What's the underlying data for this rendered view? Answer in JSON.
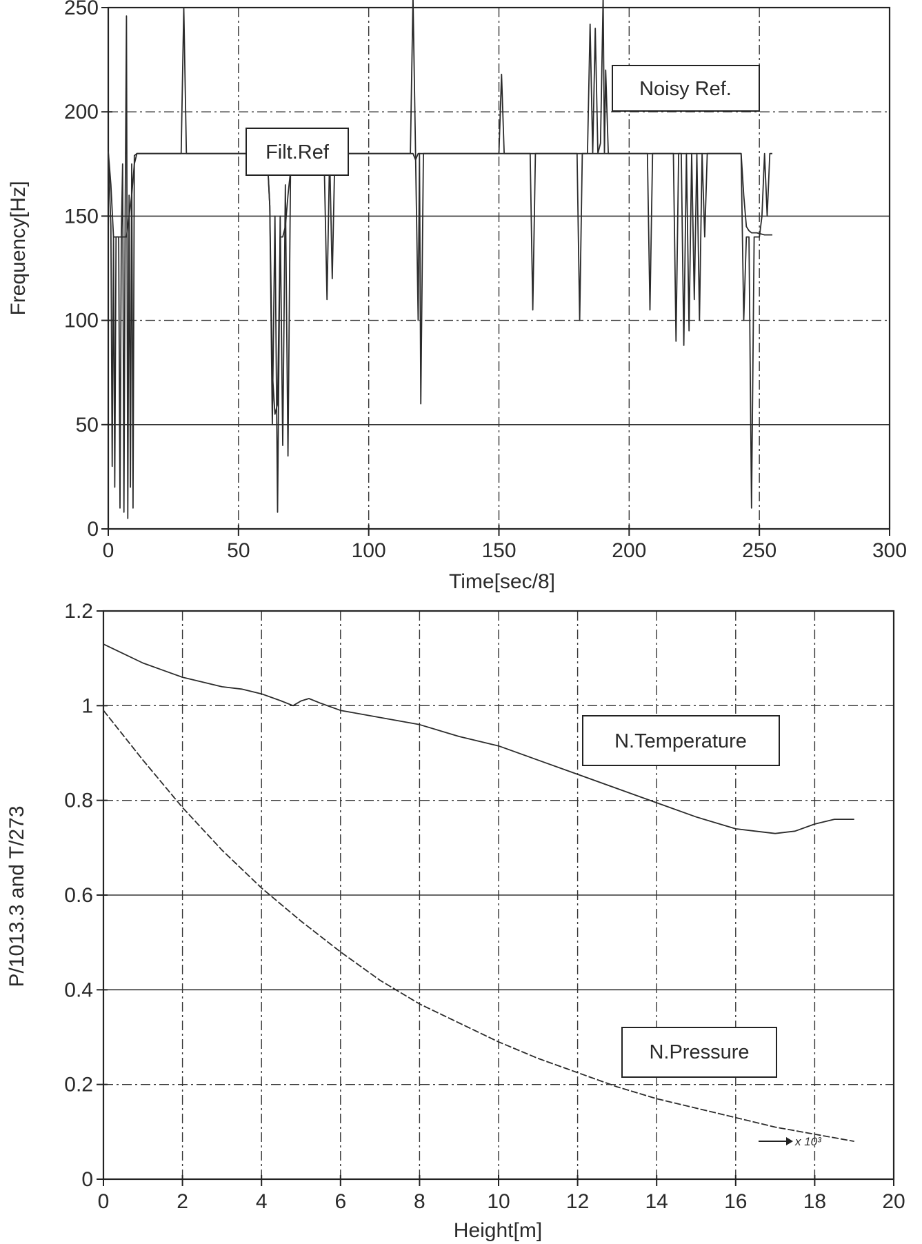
{
  "chart_data": [
    {
      "type": "line",
      "title": "",
      "xlabel": "Time[sec/8]",
      "ylabel": "Frequency[Hz]",
      "xlim": [
        0,
        300
      ],
      "ylim": [
        0,
        250
      ],
      "x_ticks": [
        "0",
        "50",
        "100",
        "150",
        "200",
        "250",
        "300"
      ],
      "y_ticks": [
        "0",
        "50",
        "100",
        "150",
        "200",
        "250"
      ],
      "grid": true,
      "annotations": [
        "Noisy Ref.",
        "Filt.Ref"
      ],
      "series": [
        {
          "x": [
            0,
            1,
            1.5,
            2,
            2.5,
            3,
            4,
            4.5,
            5,
            5.5,
            6,
            6.5,
            7,
            7.5,
            8,
            8.5,
            9,
            9.5,
            10,
            11,
            20,
            28,
            29,
            30,
            60,
            61,
            62,
            63,
            64,
            65,
            66,
            67,
            68,
            69,
            70,
            71,
            72,
            75,
            82,
            83,
            84,
            85,
            86,
            87,
            88,
            100,
            115,
            116,
            117,
            118,
            119,
            119.5,
            120,
            121,
            140,
            150,
            151,
            152,
            162,
            163,
            164,
            180,
            181,
            182,
            184,
            185,
            186,
            187,
            188,
            189,
            190,
            190.5,
            191,
            192,
            200,
            207,
            208,
            209,
            217,
            218,
            219,
            220,
            221,
            222,
            223,
            224,
            225,
            226,
            227,
            228,
            229,
            230,
            232,
            243,
            244,
            245,
            246,
            247,
            248,
            249,
            250,
            251,
            252,
            253,
            254,
            255
          ],
          "y": [
            181,
            145,
            30,
            140,
            20,
            140,
            140,
            10,
            140,
            175,
            8,
            150,
            246,
            5,
            160,
            20,
            175,
            10,
            179,
            180,
            180,
            180,
            250,
            180,
            180,
            180,
            155,
            50,
            150,
            8,
            150,
            40,
            165,
            35,
            175,
            180,
            180,
            180,
            180,
            170,
            110,
            180,
            120,
            180,
            180,
            180,
            180,
            180,
            255,
            180,
            100,
            180,
            60,
            180,
            180,
            180,
            218,
            180,
            180,
            105,
            180,
            180,
            100,
            180,
            180,
            242,
            180,
            240,
            180,
            185,
            255,
            180,
            220,
            180,
            180,
            180,
            105,
            180,
            180,
            90,
            180,
            180,
            88,
            180,
            95,
            180,
            110,
            180,
            100,
            180,
            140,
            180,
            180,
            180,
            100,
            140,
            140,
            10,
            140,
            140,
            140,
            150,
            180,
            150,
            180,
            180
          ]
        },
        {
          "x": [
            0,
            1,
            2,
            3,
            4,
            5,
            6,
            7,
            8,
            9,
            10,
            11,
            60,
            61,
            62,
            63,
            64,
            65,
            66,
            67,
            68,
            69,
            70,
            71,
            72,
            117,
            118,
            119,
            121,
            190,
            243,
            244,
            245,
            246,
            247,
            248,
            249,
            252,
            253,
            254,
            255
          ],
          "y": [
            181,
            165,
            140,
            140,
            140,
            140,
            140,
            140,
            150,
            160,
            175,
            180,
            180,
            180,
            155,
            75,
            55,
            60,
            140,
            140,
            145,
            160,
            172,
            178,
            180,
            180,
            177,
            180,
            180,
            180,
            180,
            160,
            145,
            143,
            142,
            142,
            142,
            141,
            141,
            141,
            141
          ]
        }
      ]
    },
    {
      "type": "line",
      "title": "",
      "xlabel": "Height[m]",
      "ylabel": "P/1013.3 and T/273",
      "xlim": [
        0,
        20
      ],
      "ylim": [
        0,
        1.2
      ],
      "x_ticks": [
        "0",
        "2",
        "4",
        "6",
        "8",
        "10",
        "12",
        "14",
        "16",
        "18",
        "20"
      ],
      "y_ticks": [
        "0",
        "0.2",
        "0.4",
        "0.6",
        "0.8",
        "1",
        "1.2"
      ],
      "x_multiplier": "x 10³",
      "grid": true,
      "annotations": [
        "N.Temperature",
        "N.Pressure"
      ],
      "series": [
        {
          "x": [
            0,
            0.5,
            1,
            1.5,
            2,
            2.5,
            3,
            3.5,
            4,
            4.5,
            4.8,
            5,
            5.2,
            5.5,
            6,
            7,
            8,
            9,
            10,
            11,
            12,
            13,
            14,
            15,
            16,
            16.5,
            17,
            17.5,
            18,
            18.5,
            19
          ],
          "y": [
            1.13,
            1.11,
            1.09,
            1.075,
            1.06,
            1.05,
            1.04,
            1.035,
            1.025,
            1.01,
            1.0,
            1.01,
            1.015,
            1.005,
            0.99,
            0.975,
            0.96,
            0.935,
            0.915,
            0.885,
            0.855,
            0.825,
            0.795,
            0.765,
            0.74,
            0.735,
            0.73,
            0.735,
            0.75,
            0.76,
            0.76
          ]
        },
        {
          "x": [
            0,
            1,
            2,
            3,
            4,
            5,
            6,
            7,
            8,
            9,
            10,
            11,
            12,
            13,
            14,
            15,
            16,
            17,
            18,
            19
          ],
          "y": [
            0.99,
            0.885,
            0.785,
            0.695,
            0.615,
            0.545,
            0.48,
            0.42,
            0.37,
            0.33,
            0.29,
            0.255,
            0.225,
            0.195,
            0.17,
            0.15,
            0.13,
            0.11,
            0.095,
            0.08
          ]
        }
      ]
    }
  ]
}
